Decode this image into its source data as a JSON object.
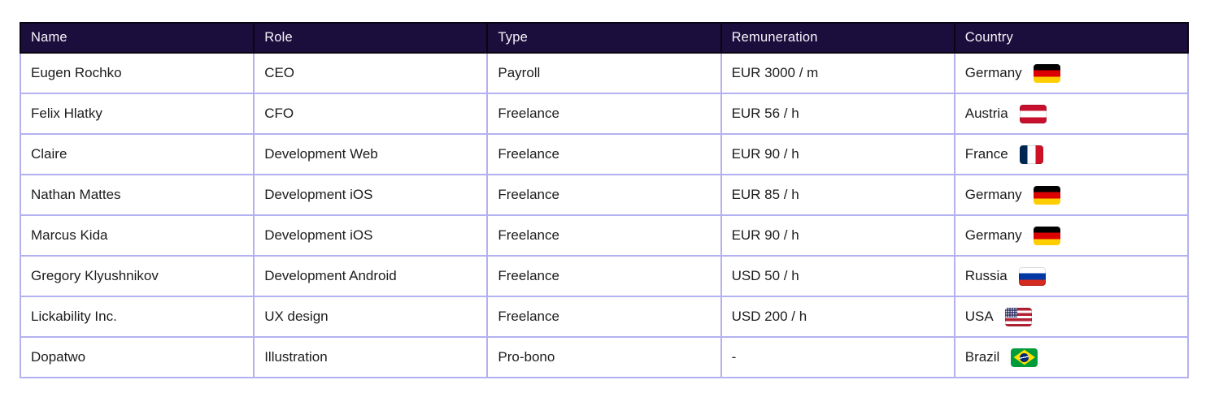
{
  "colors": {
    "header_bg": "#1b0e3c",
    "header_text": "#f7f5fb",
    "header_border": "#0a0512",
    "body_border": "#b4b1f1",
    "body_text": "#1c1c1e",
    "page_bg": "#ffffff"
  },
  "table": {
    "columns": [
      {
        "label": "Name"
      },
      {
        "label": "Role"
      },
      {
        "label": "Type"
      },
      {
        "label": "Remuneration"
      },
      {
        "label": "Country"
      }
    ],
    "rows": [
      {
        "name": "Eugen Rochko",
        "role": "CEO",
        "type": "Payroll",
        "remuneration": "EUR 3000 / m",
        "country": "Germany",
        "flag_code": "de",
        "flag_name": "germany"
      },
      {
        "name": "Felix Hlatky",
        "role": "CFO",
        "type": "Freelance",
        "remuneration": "EUR 56 / h",
        "country": "Austria",
        "flag_code": "at",
        "flag_name": "austria"
      },
      {
        "name": "Claire",
        "role": "Development Web",
        "type": "Freelance",
        "remuneration": "EUR 90 / h",
        "country": "France",
        "flag_code": "fr",
        "flag_name": "france"
      },
      {
        "name": "Nathan Mattes",
        "role": "Development iOS",
        "type": "Freelance",
        "remuneration": "EUR 85 / h",
        "country": "Germany",
        "flag_code": "de",
        "flag_name": "germany"
      },
      {
        "name": "Marcus Kida",
        "role": "Development iOS",
        "type": "Freelance",
        "remuneration": "EUR 90 / h",
        "country": "Germany",
        "flag_code": "de",
        "flag_name": "germany"
      },
      {
        "name": "Gregory Klyushnikov",
        "role": "Development Android",
        "type": "Freelance",
        "remuneration": "USD 50 / h",
        "country": "Russia",
        "flag_code": "ru",
        "flag_name": "russia"
      },
      {
        "name": "Lickability Inc.",
        "role": "UX design",
        "type": "Freelance",
        "remuneration": "USD 200 / h",
        "country": "USA",
        "flag_code": "us",
        "flag_name": "usa"
      },
      {
        "name": "Dopatwo",
        "role": "Illustration",
        "type": "Pro-bono",
        "remuneration": "-",
        "country": "Brazil",
        "flag_code": "br",
        "flag_name": "brazil"
      }
    ]
  }
}
